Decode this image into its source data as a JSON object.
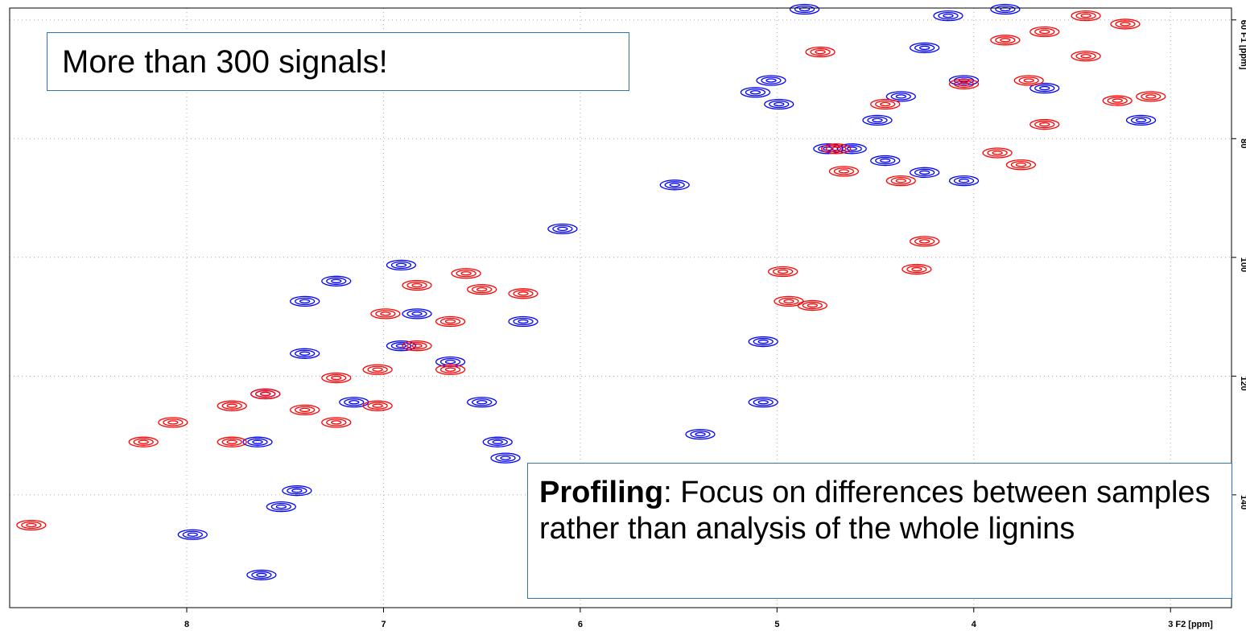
{
  "chart_data": {
    "type": "scatter",
    "xlim": [
      8.9,
      2.69
    ],
    "ylim": [
      58,
      159
    ],
    "xticks": [
      8,
      7,
      6,
      5,
      4,
      {
        "value": 3,
        "label": "3 F2 [ppm]"
      }
    ],
    "yticks": [
      {
        "value": 60,
        "label": "60 F1 [ppm]"
      },
      80,
      100,
      120,
      140
    ],
    "grid": true,
    "series": [
      {
        "color": "#0000ff",
        "x": [
          4.13,
          4.25,
          4.05,
          5.03,
          5.11,
          4.99,
          4.62,
          4.45,
          4.25,
          4.05,
          5.52,
          4.74,
          4.37,
          4.49,
          6.91,
          7.24,
          7.4,
          6.83,
          6.29,
          7.4,
          6.91,
          6.66,
          7.6,
          7.64,
          6.42,
          6.38,
          5.39,
          5.07,
          5.07,
          7.52,
          7.97,
          7.62,
          4.86,
          3.84,
          3.15,
          3.64,
          6.5,
          7.15,
          7.44,
          6.09
        ],
        "values": [
          59.3,
          64.7,
          70.2,
          70.2,
          72.2,
          74.2,
          81.7,
          83.7,
          85.7,
          87.1,
          87.8,
          81.7,
          72.9,
          76.9,
          101.3,
          104.0,
          107.4,
          109.5,
          110.8,
          116.2,
          114.9,
          117.6,
          123.0,
          131.1,
          131.1,
          133.8,
          129.8,
          124.4,
          114.2,
          142.0,
          146.7,
          153.5,
          58.2,
          58.2,
          76.9,
          71.5,
          124.4,
          124.4,
          139.3,
          95.2
        ]
      },
      {
        "color": "#ff0000",
        "x": [
          3.43,
          3.64,
          3.23,
          3.84,
          3.43,
          4.05,
          3.72,
          3.27,
          3.1,
          4.45,
          4.7,
          4.66,
          4.37,
          3.88,
          3.76,
          3.64,
          4.78,
          6.58,
          6.5,
          6.83,
          6.29,
          6.99,
          6.66,
          6.83,
          6.66,
          7.03,
          7.24,
          7.6,
          7.4,
          7.77,
          7.03,
          7.24,
          8.07,
          8.22,
          7.77,
          8.79,
          4.29,
          4.94,
          4.82,
          4.97,
          4.25
        ],
        "values": [
          59.3,
          62.0,
          60.7,
          63.4,
          66.1,
          70.8,
          70.2,
          73.6,
          72.9,
          74.2,
          81.7,
          85.5,
          87.1,
          82.4,
          84.4,
          77.6,
          65.4,
          102.7,
          105.4,
          104.7,
          106.1,
          109.5,
          110.8,
          114.9,
          118.9,
          118.9,
          120.3,
          123.0,
          125.7,
          125.0,
          125.0,
          127.8,
          127.8,
          131.1,
          131.1,
          145.1,
          102.0,
          107.4,
          108.1,
          102.4,
          97.3
        ]
      }
    ],
    "annotations": [
      "More than 300 signals!",
      {
        "bold": "Profiling",
        "text": ": Focus on differences between samples rather than analysis of the whole lignins"
      }
    ]
  }
}
